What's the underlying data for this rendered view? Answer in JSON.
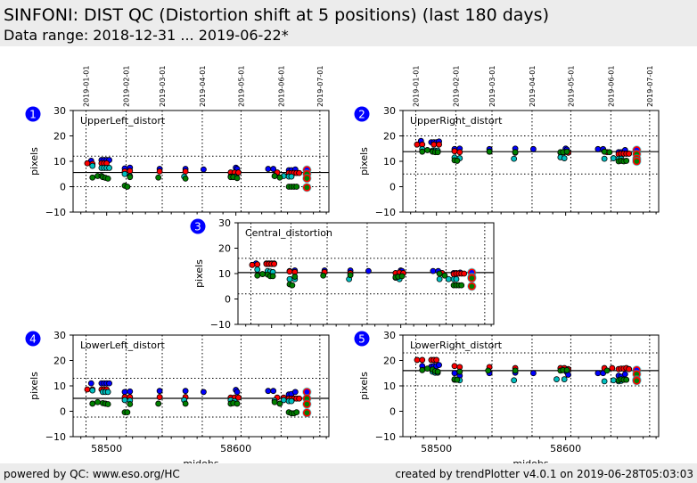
{
  "header": {
    "title": "SINFONI: DIST QC (Distortion shift at 5 positions) (last 180 days)",
    "subtitle": "Data range: 2018-12-31 ... 2019-06-22*"
  },
  "footer": {
    "left": "powered by QC: www.eso.org/HC",
    "right": "created by trendPlotter v4.0.1 on 2019-06-28T05:03:03"
  },
  "colors": {
    "series_blue": "#0000ff",
    "series_red": "#ff0000",
    "series_cyan": "#00bfbf",
    "series_green": "#008000",
    "badge": "#0000ff",
    "header_bg": "#ececec"
  },
  "chart_data": [
    {
      "type": "scatter",
      "badge": "1",
      "title": "UpperLeft_distort",
      "xlabel": "",
      "ylabel": "pixels",
      "xlim": [
        58474,
        58672
      ],
      "ylim": [
        -10,
        30
      ],
      "yticks": [
        -10,
        0,
        10,
        20,
        30
      ],
      "xticks": [],
      "date_ticks": [
        "2019-01-01",
        "2019-02-01",
        "2019-03-01",
        "2019-04-01",
        "2019-05-01",
        "2019-06-01",
        "2019-07-01"
      ],
      "date_tick_mjd": [
        58484,
        58515,
        58543,
        58574,
        58604,
        58635,
        58665
      ],
      "reference_line": 5.6,
      "limit_lines": [
        12,
        0
      ],
      "grid": true,
      "series": [
        {
          "name": "blue",
          "color": "#0000ff",
          "x": [
            58488,
            58496,
            58498,
            58500,
            58502,
            58514,
            58518,
            58541,
            58561,
            58575,
            58600,
            58601,
            58625,
            58629,
            58641,
            58643,
            58646
          ],
          "y": [
            10.2,
            10.5,
            10.5,
            10.5,
            10.5,
            7.2,
            7.5,
            7.0,
            7.0,
            6.8,
            7.5,
            7.0,
            7.0,
            7.0,
            6.5,
            6.5,
            6.8
          ]
        },
        {
          "name": "red",
          "color": "#ff0000",
          "x": [
            58485,
            58489,
            58496,
            58498,
            58500,
            58514,
            58518,
            58541,
            58561,
            58596,
            58599,
            58602,
            58632,
            58641,
            58643,
            58645,
            58647,
            58649
          ],
          "y": [
            9.2,
            9.0,
            9.2,
            9.2,
            9.2,
            6.0,
            6.2,
            6.0,
            6.0,
            5.6,
            5.6,
            5.6,
            5.6,
            5.4,
            5.4,
            5.4,
            5.4,
            5.4
          ]
        },
        {
          "name": "cyan",
          "color": "#00bfbf",
          "x": [
            58489,
            58496,
            58498,
            58500,
            58502,
            58514,
            58518,
            58560,
            58596,
            58599,
            58630,
            58637,
            58641,
            58643
          ],
          "y": [
            8.2,
            7.4,
            7.4,
            7.4,
            7.4,
            5.0,
            4.2,
            4.0,
            4.0,
            4.0,
            4.2,
            4.2,
            4.0,
            4.0
          ]
        },
        {
          "name": "green",
          "color": "#008000",
          "x": [
            58489,
            58493,
            58496,
            58497,
            58499,
            58501,
            58514,
            58516,
            58518,
            58540,
            58561,
            58596,
            58598,
            58601,
            58630,
            58634,
            58641,
            58643,
            58645,
            58647
          ],
          "y": [
            3.6,
            4.2,
            4.2,
            3.8,
            3.5,
            3.2,
            0.4,
            0.0,
            3.8,
            3.6,
            3.2,
            3.8,
            3.8,
            3.4,
            4.2,
            3.6,
            0.0,
            0.0,
            0.0,
            0.0
          ]
        }
      ],
      "last_point": {
        "x": 58655,
        "y": [
          6.6,
          5.0,
          3.3,
          -0.3
        ]
      }
    },
    {
      "type": "scatter",
      "badge": "2",
      "title": "UpperRight_distort",
      "xlabel": "",
      "ylabel": "pixels",
      "xlim": [
        58474,
        58672
      ],
      "ylim": [
        -10,
        30
      ],
      "yticks": [
        -10,
        0,
        10,
        20,
        30
      ],
      "xticks": [],
      "date_ticks": [
        "2019-01-01",
        "2019-02-01",
        "2019-03-01",
        "2019-04-01",
        "2019-05-01",
        "2019-06-01",
        "2019-07-01"
      ],
      "date_tick_mjd": [
        58484,
        58515,
        58543,
        58574,
        58604,
        58635,
        58665
      ],
      "reference_line": 13.8,
      "limit_lines": [
        20,
        5
      ],
      "grid": true,
      "series": [
        {
          "name": "blue",
          "color": "#0000ff",
          "x": [
            58488,
            58496,
            58498,
            58500,
            58502,
            58514,
            58518,
            58541,
            58561,
            58575,
            58600,
            58601,
            58625,
            58629,
            58641,
            58643,
            58646
          ],
          "y": [
            18.0,
            17.5,
            17.5,
            17.5,
            17.8,
            14.8,
            15.0,
            14.8,
            15.0,
            14.8,
            15.0,
            14.6,
            14.8,
            14.8,
            13.6,
            13.6,
            14.4
          ]
        },
        {
          "name": "red",
          "color": "#ff0000",
          "x": [
            58485,
            58489,
            58498,
            58502,
            58514,
            58518,
            58541,
            58561,
            58596,
            58599,
            58602,
            58632,
            58641,
            58643,
            58645,
            58647,
            58649
          ],
          "y": [
            16.6,
            16.6,
            16.6,
            16.6,
            14.0,
            13.6,
            13.8,
            13.4,
            13.4,
            13.6,
            13.4,
            13.6,
            12.8,
            13.0,
            13.0,
            13.0,
            13.0
          ]
        },
        {
          "name": "cyan",
          "color": "#00bfbf",
          "x": [
            58489,
            58497,
            58499,
            58501,
            58514,
            58518,
            58560,
            58596,
            58599,
            58630,
            58637,
            58641,
            58643
          ],
          "y": [
            14.8,
            14.2,
            14.2,
            14.2,
            11.5,
            11.2,
            11.0,
            11.6,
            11.2,
            11.0,
            11.2,
            11.0,
            11.0
          ]
        },
        {
          "name": "green",
          "color": "#008000",
          "x": [
            58489,
            58493,
            58497,
            58499,
            58501,
            58514,
            58516,
            58541,
            58561,
            58596,
            58598,
            58601,
            58630,
            58634,
            58641,
            58643,
            58645,
            58647
          ],
          "y": [
            13.8,
            14.4,
            13.8,
            13.6,
            13.6,
            10.4,
            10.2,
            13.8,
            13.6,
            13.6,
            13.6,
            13.8,
            13.8,
            13.6,
            10.0,
            10.2,
            10.0,
            10.2
          ]
        }
      ],
      "last_point": {
        "x": 58655,
        "y": [
          14.4,
          12.8,
          11.0,
          10.0
        ]
      }
    },
    {
      "type": "scatter",
      "badge": "3",
      "title": "Central_distortion",
      "xlabel": "",
      "ylabel": "pixels",
      "xlim": [
        58474,
        58672
      ],
      "ylim": [
        -10,
        30
      ],
      "yticks": [
        -10,
        0,
        10,
        20,
        30
      ],
      "xticks": [],
      "date_tick_mjd": [
        58484,
        58515,
        58543,
        58574,
        58604,
        58635,
        58665
      ],
      "reference_line": 10.4,
      "limit_lines": [
        16,
        2
      ],
      "grid": true,
      "series": [
        {
          "name": "blue",
          "color": "#0000ff",
          "x": [
            58488,
            58496,
            58498,
            58500,
            58502,
            58514,
            58518,
            58541,
            58561,
            58575,
            58600,
            58601,
            58625,
            58629,
            58641,
            58643,
            58646
          ],
          "y": [
            14.0,
            14.0,
            14.0,
            14.0,
            14.0,
            11.0,
            11.2,
            11.2,
            11.2,
            11.0,
            11.2,
            11.0,
            11.0,
            11.0,
            10.2,
            10.2,
            10.4
          ]
        },
        {
          "name": "red",
          "color": "#ff0000",
          "x": [
            58485,
            58489,
            58496,
            58498,
            58500,
            58502,
            58514,
            58518,
            58541,
            58561,
            58596,
            58599,
            58602,
            58632,
            58641,
            58643,
            58645,
            58647,
            58649
          ],
          "y": [
            13.4,
            13.6,
            13.8,
            13.8,
            13.8,
            13.8,
            10.8,
            10.6,
            10.6,
            10.2,
            10.2,
            10.4,
            10.2,
            10.2,
            9.8,
            10.0,
            10.0,
            10.0,
            10.0
          ]
        },
        {
          "name": "cyan",
          "color": "#00bfbf",
          "x": [
            58489,
            58497,
            58499,
            58501,
            58514,
            58518,
            58560,
            58596,
            58599,
            58630,
            58637,
            58641,
            58643
          ],
          "y": [
            11.6,
            11.0,
            10.8,
            10.6,
            7.8,
            7.8,
            7.8,
            8.4,
            7.8,
            7.8,
            7.8,
            7.8,
            7.8
          ]
        },
        {
          "name": "green",
          "color": "#008000",
          "x": [
            58489,
            58493,
            58497,
            58499,
            58501,
            58514,
            58516,
            58518,
            58540,
            58561,
            58596,
            58598,
            58601,
            58630,
            58634,
            58641,
            58643,
            58645,
            58647
          ],
          "y": [
            9.2,
            9.8,
            9.6,
            9.0,
            9.0,
            5.8,
            5.4,
            8.8,
            9.2,
            9.4,
            8.6,
            8.8,
            9.0,
            10.0,
            9.2,
            5.4,
            5.4,
            5.4,
            5.4
          ]
        }
      ],
      "last_point": {
        "x": 58655,
        "y": [
          10.4,
          8.6,
          8.2,
          5.0
        ]
      }
    },
    {
      "type": "scatter",
      "badge": "4",
      "title": "LowerLeft_distort",
      "xlabel": "mjdobs",
      "ylabel": "pixels",
      "xlim": [
        58474,
        58672
      ],
      "ylim": [
        -10,
        30
      ],
      "yticks": [
        -10,
        0,
        10,
        20,
        30
      ],
      "xticks": [
        58500,
        58600
      ],
      "date_tick_mjd": [
        58484,
        58515,
        58543,
        58574,
        58604,
        58635,
        58665
      ],
      "reference_line": 5.1,
      "limit_lines": [
        13,
        -2.3
      ],
      "grid": true,
      "series": [
        {
          "name": "blue",
          "color": "#0000ff",
          "x": [
            58488,
            58496,
            58498,
            58500,
            58502,
            58514,
            58518,
            58541,
            58561,
            58575,
            58600,
            58601,
            58625,
            58629,
            58641,
            58643,
            58646
          ],
          "y": [
            11.0,
            11.0,
            11.0,
            11.0,
            11.0,
            7.6,
            7.8,
            8.0,
            8.0,
            7.6,
            8.4,
            7.6,
            8.0,
            8.0,
            6.6,
            6.8,
            7.6
          ]
        },
        {
          "name": "red",
          "color": "#ff0000",
          "x": [
            58485,
            58489,
            58496,
            58498,
            58500,
            58514,
            58518,
            58541,
            58561,
            58596,
            58599,
            58602,
            58632,
            58637,
            58641,
            58643,
            58645,
            58647,
            58649
          ],
          "y": [
            8.6,
            8.6,
            8.6,
            8.6,
            8.6,
            5.6,
            5.6,
            5.6,
            5.6,
            5.4,
            5.4,
            5.4,
            5.4,
            5.4,
            5.0,
            5.0,
            5.0,
            5.0,
            5.0
          ]
        },
        {
          "name": "cyan",
          "color": "#00bfbf",
          "x": [
            58489,
            58497,
            58499,
            58501,
            58514,
            58518,
            58560,
            58596,
            58599,
            58630,
            58637,
            58641,
            58643
          ],
          "y": [
            8.2,
            7.6,
            7.6,
            7.6,
            4.4,
            4.2,
            4.4,
            4.4,
            4.0,
            4.2,
            4.4,
            4.0,
            4.0
          ]
        },
        {
          "name": "green",
          "color": "#008000",
          "x": [
            58489,
            58493,
            58497,
            58499,
            58501,
            58514,
            58516,
            58518,
            58540,
            58561,
            58596,
            58598,
            58601,
            58630,
            58634,
            58641,
            58643,
            58645,
            58647
          ],
          "y": [
            3.0,
            3.6,
            3.2,
            3.0,
            2.8,
            -0.4,
            -0.4,
            2.8,
            3.0,
            3.0,
            3.0,
            3.2,
            3.0,
            3.6,
            3.0,
            -0.4,
            -0.8,
            -0.8,
            -0.4
          ]
        }
      ],
      "last_point": {
        "x": 58655,
        "y": [
          7.6,
          5.0,
          2.8,
          -0.6
        ]
      }
    },
    {
      "type": "scatter",
      "badge": "5",
      "title": "LowerRight_distort",
      "xlabel": "mjdobs",
      "ylabel": "pixels",
      "xlim": [
        58474,
        58672
      ],
      "ylim": [
        -10,
        30
      ],
      "yticks": [
        -10,
        0,
        10,
        20,
        30
      ],
      "xticks": [
        58500,
        58600
      ],
      "date_tick_mjd": [
        58484,
        58515,
        58543,
        58574,
        58604,
        58635,
        58665
      ],
      "reference_line": 16.0,
      "limit_lines": [
        23,
        10
      ],
      "grid": true,
      "series": [
        {
          "name": "blue",
          "color": "#0000ff",
          "x": [
            58489,
            58496,
            58498,
            58500,
            58502,
            58514,
            58518,
            58541,
            58561,
            58575,
            58601,
            58602,
            58625,
            58629,
            58641,
            58643,
            58646
          ],
          "y": [
            17.8,
            17.6,
            17.8,
            17.8,
            18.2,
            15.0,
            14.0,
            15.0,
            15.2,
            15.0,
            15.4,
            14.4,
            15.0,
            15.0,
            14.0,
            13.6,
            14.6
          ]
        },
        {
          "name": "red",
          "color": "#ff0000",
          "x": [
            58485,
            58489,
            58496,
            58498,
            58500,
            58514,
            58518,
            58541,
            58561,
            58596,
            58599,
            58602,
            58630,
            58636,
            58641,
            58643,
            58645,
            58647,
            58649
          ],
          "y": [
            20.2,
            20.2,
            20.2,
            20.2,
            20.2,
            17.8,
            17.4,
            17.4,
            17.0,
            17.0,
            17.0,
            16.6,
            17.0,
            17.0,
            16.6,
            16.8,
            16.8,
            17.0,
            16.6
          ]
        },
        {
          "name": "cyan",
          "color": "#00bfbf",
          "x": [
            58497,
            58499,
            58501,
            58514,
            58518,
            58560,
            58593,
            58599,
            58630,
            58637,
            58641,
            58643
          ],
          "y": [
            15.6,
            15.2,
            15.2,
            12.4,
            12.2,
            12.2,
            12.6,
            12.6,
            11.8,
            12.2,
            11.8,
            12.0
          ]
        },
        {
          "name": "green",
          "color": "#008000",
          "x": [
            58489,
            58493,
            58497,
            58499,
            58501,
            58514,
            58516,
            58518,
            58540,
            58561,
            58596,
            58598,
            58601,
            58632,
            58641,
            58643,
            58645,
            58647
          ],
          "y": [
            16.2,
            16.8,
            16.4,
            15.8,
            15.6,
            12.6,
            12.4,
            15.6,
            16.0,
            16.0,
            16.0,
            16.2,
            16.2,
            16.0,
            12.2,
            12.6,
            12.4,
            12.4
          ]
        }
      ],
      "last_point": {
        "x": 58655,
        "y": [
          16.2,
          14.6,
          12.4,
          12.0
        ]
      }
    }
  ]
}
